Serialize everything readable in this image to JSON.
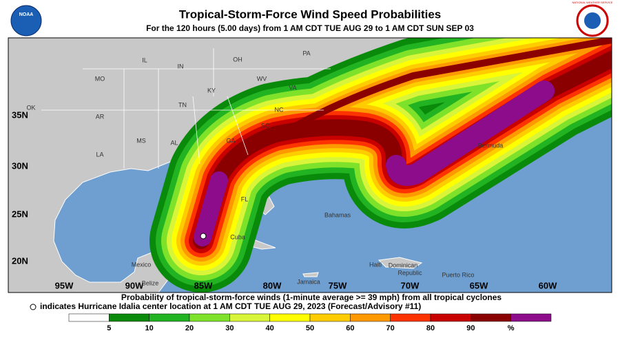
{
  "header": {
    "title": "Tropical-Storm-Force Wind Speed Probabilities",
    "subtitle": "For the 120 hours (5.00 days) from 1 AM CDT TUE AUG 29 to 1 AM CDT SUN SEP 03",
    "left_logo": "NOAA",
    "right_logo": "NATIONAL WEATHER SERVICE"
  },
  "map": {
    "lon_labels": [
      "95W",
      "90W",
      "85W",
      "80W",
      "75W",
      "70W",
      "65W",
      "60W"
    ],
    "lat_labels": [
      "35N",
      "30N",
      "25N",
      "20N"
    ],
    "places": [
      "IL",
      "IN",
      "OH",
      "PA",
      "MO",
      "KY",
      "WV",
      "VA",
      "OK",
      "TN",
      "NC",
      "AR",
      "SC",
      "MS",
      "AL",
      "GA",
      "LA",
      "FL",
      "Mexico",
      "Cuba",
      "Bahamas",
      "Bermuda",
      "Jamaica",
      "Haiti",
      "Dominican",
      "Republic",
      "Puerto Rico",
      "Belize"
    ]
  },
  "footer": {
    "line1": "Probability of tropical-storm-force winds (1-minute average >= 39 mph) from all tropical cyclones",
    "line2": "indicates Hurricane Idalia center location at 1 AM CDT TUE AUG 29, 2023 (Forecast/Advisory #11)"
  },
  "legend": {
    "ticks": [
      "5",
      "10",
      "20",
      "30",
      "40",
      "50",
      "60",
      "70",
      "80",
      "90",
      "%"
    ],
    "colors": [
      "#ffffff",
      "#0a8a0a",
      "#22b322",
      "#7fe22a",
      "#d9f53a",
      "#ffff00",
      "#ffcc00",
      "#ff9900",
      "#ff3300",
      "#c80000",
      "#8a0000",
      "#8c0c8c"
    ]
  }
}
